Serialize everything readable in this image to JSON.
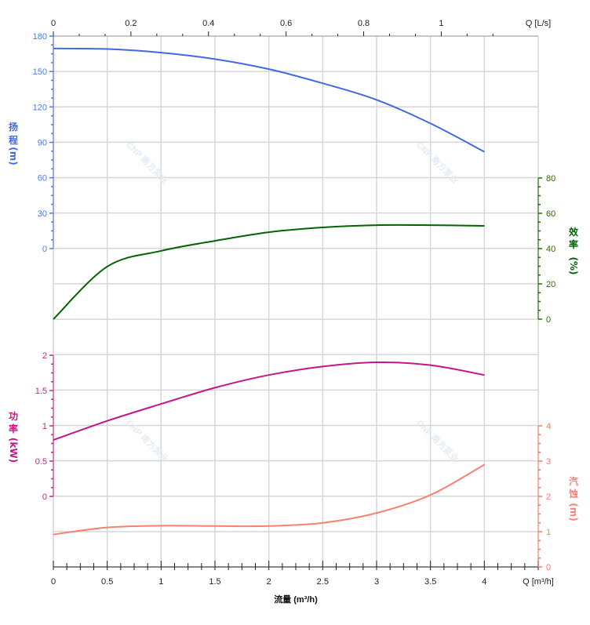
{
  "chart_data": {
    "type": "line",
    "x": [
      0,
      0.5,
      1,
      1.5,
      2,
      2.5,
      3,
      3.5,
      4
    ],
    "xlabel": "流量 (m³/h)",
    "x_axis_end_label": "Q [m³/h]",
    "xlim": [
      0,
      4.5
    ],
    "x_ticks": [
      "0",
      "0.5",
      "1",
      "1.5",
      "2",
      "2.5",
      "3",
      "3.5",
      "4"
    ],
    "top_axis": {
      "label": "Q [L/s]",
      "ticks": [
        "0",
        "0.2",
        "0.4",
        "0.6",
        "0.8",
        "1"
      ],
      "values": [
        0,
        0.2,
        0.4,
        0.6,
        0.8,
        1
      ]
    },
    "grid": true,
    "watermark": "CNP 南方泵业",
    "series": [
      {
        "key": "head",
        "axis_label": [
          "扬",
          "程",
          "(m)"
        ],
        "axis_side": "left",
        "color": "#4169e1",
        "tick_color": "#4a7be8",
        "ticks": [
          0,
          30,
          60,
          90,
          120,
          150,
          180
        ],
        "ylim": [
          0,
          180
        ],
        "values": [
          169.5,
          169,
          166,
          160.5,
          152,
          140,
          126,
          106,
          82
        ]
      },
      {
        "key": "efficiency",
        "axis_label": [
          "效",
          "率",
          "(%)"
        ],
        "axis_side": "right",
        "color": "#006400",
        "tick_color": "#2e6b00",
        "ticks": [
          0,
          20,
          40,
          60,
          80
        ],
        "ylim": [
          0,
          80
        ],
        "values": [
          0,
          29.8,
          38.7,
          44.4,
          49.3,
          52,
          53.3,
          53.3,
          52.9
        ]
      },
      {
        "key": "power",
        "axis_label": [
          "功",
          "率",
          "(kW)"
        ],
        "axis_side": "left",
        "color": "#c71585",
        "tick_color": "#cc2288",
        "ticks": [
          0,
          0.5,
          1,
          1.5,
          2
        ],
        "tick_labels": [
          "0",
          "0.5",
          "1",
          "1.5",
          "2"
        ],
        "ylim": [
          0,
          2
        ],
        "values": [
          0.8,
          1.07,
          1.31,
          1.54,
          1.72,
          1.84,
          1.9,
          1.86,
          1.72
        ]
      },
      {
        "key": "npsh",
        "axis_label": [
          "汽",
          "蚀",
          "(m)"
        ],
        "axis_side": "right",
        "color": "#fa8072",
        "tick_color": "#f07a6a",
        "ticks": [
          0,
          1,
          2,
          3,
          4
        ],
        "ylim": [
          0,
          4
        ],
        "values": [
          0.92,
          1.12,
          1.17,
          1.16,
          1.16,
          1.25,
          1.53,
          2.04,
          2.9
        ]
      }
    ]
  }
}
